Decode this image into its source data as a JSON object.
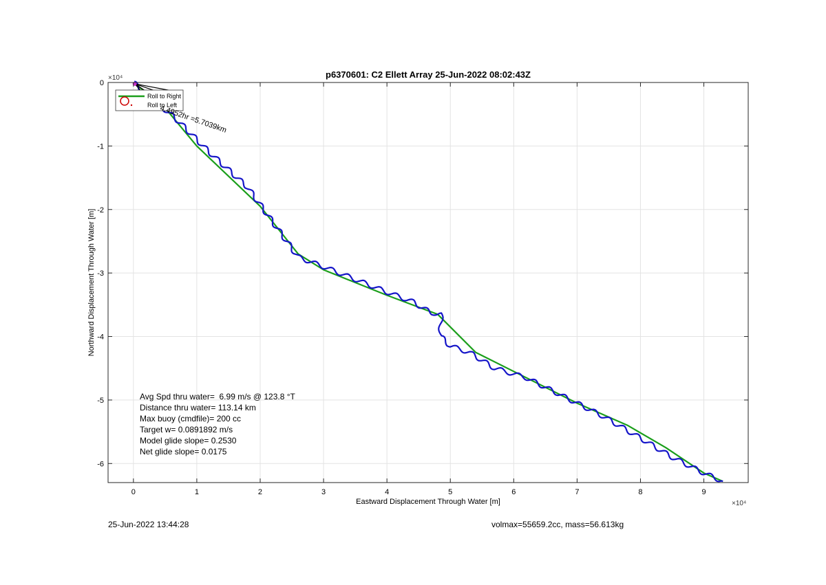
{
  "chart_data": {
    "type": "line",
    "title": "p6370601: C2 Ellett Array 25-Jun-2022 08:02:43Z",
    "xlabel": "Eastward Displacement Through Water [m]",
    "ylabel": "Northward Displacement Through Water [m]",
    "x_exponent_label": "×10⁴",
    "y_exponent_label": "×10⁴",
    "xlim": [
      -4000,
      97000
    ],
    "ylim": [
      -63000,
      0
    ],
    "x_ticks": [
      0,
      10000,
      20000,
      30000,
      40000,
      50000,
      60000,
      70000,
      80000,
      90000
    ],
    "x_tick_labels": [
      "0",
      "1",
      "2",
      "3",
      "4",
      "5",
      "6",
      "7",
      "8",
      "9"
    ],
    "y_ticks": [
      0,
      -10000,
      -20000,
      -30000,
      -40000,
      -50000,
      -60000
    ],
    "y_tick_labels": [
      "0",
      "-1",
      "-2",
      "-3",
      "-4",
      "-5",
      "-6"
    ],
    "grid": true,
    "legend": {
      "placement": "top-left",
      "entries": [
        "Roll to Right",
        "Roll to Left"
      ]
    },
    "annotation": "4.4952hr =5.7039km",
    "series": [
      {
        "name": "",
        "color": "#1a9e1a",
        "x": [
          0,
          5000,
          10000,
          20000,
          26000,
          30000,
          35000,
          40000,
          48000,
          54000,
          60000,
          70000,
          78000,
          84000,
          90000,
          93000
        ],
        "y": [
          0,
          -4000,
          -10000,
          -19500,
          -27000,
          -29500,
          -31500,
          -33500,
          -36500,
          -42500,
          -45500,
          -50500,
          -54000,
          -57500,
          -61500,
          -62800
        ]
      },
      {
        "name": "",
        "color": "#1414c8",
        "x": [
          0,
          7000,
          12000,
          18000,
          22000,
          26000,
          30000,
          35000,
          40000,
          44000,
          47000,
          48500,
          48500,
          50000,
          53000,
          57000,
          62000,
          68000,
          74000,
          80000,
          85000,
          90000,
          93000
        ],
        "y": [
          0,
          -6000,
          -11000,
          -16500,
          -22000,
          -27500,
          -29000,
          -31000,
          -33000,
          -34500,
          -36300,
          -36300,
          -40000,
          -41500,
          -42500,
          -45000,
          -46500,
          -49500,
          -52500,
          -56000,
          -59000,
          -61500,
          -62800
        ],
        "wiggle": true
      },
      {
        "name": "",
        "color": "#000000",
        "x": [
          200,
          5500,
          200,
          4800,
          200,
          3800,
          200,
          2800
        ],
        "y": [
          -200,
          -1200,
          -200,
          -1800,
          -200,
          -2600,
          -200,
          -3200
        ]
      }
    ]
  },
  "stats": {
    "avg_speed": "Avg Spd thru water=  6.99 m/s @ 123.8 °T",
    "distance": "Distance thru water= 113.14 km",
    "max_buoy": "Max buoy (cmdfile)= 200 cc",
    "target_w": "Target w= 0.0891892 m/s",
    "model_glide": "Model glide slope= 0.2530",
    "net_glide": "Net glide slope= 0.0175"
  },
  "footer": {
    "timestamp": "25-Jun-2022 13:44:28",
    "volmax": "volmax=55659.2cc, mass=56.613kg"
  }
}
